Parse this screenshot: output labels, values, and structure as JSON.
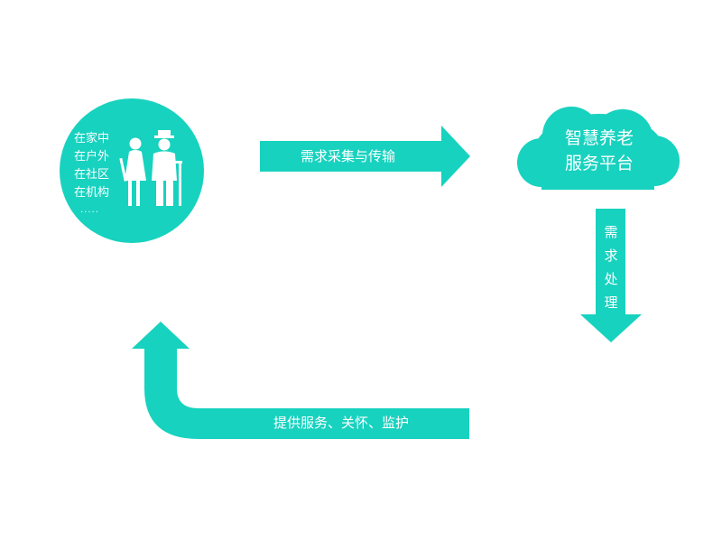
{
  "colors": {
    "accent": "#17d2bf",
    "text_on_accent": "#ffffff",
    "background": "#ffffff"
  },
  "user_node": {
    "lines": [
      "在家中",
      "在户外",
      "在社区",
      "在机构"
    ],
    "ellipsis": "....."
  },
  "platform_node": {
    "lines": [
      "智慧养老",
      "服务平台"
    ]
  },
  "edges": {
    "collect": "需求采集与传输",
    "process": [
      "需",
      "求",
      "处",
      "理"
    ],
    "provide": "提供服务、关怀、监护"
  }
}
